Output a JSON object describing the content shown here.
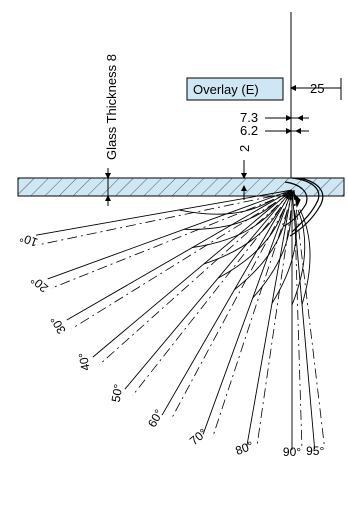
{
  "labels": {
    "glass_thickness": "Glass Thickness 8",
    "overlay": "Overlay (E)",
    "dim_25": "25",
    "dim_7_3": "7.3",
    "dim_6_2": "6.2",
    "dim_2": "2"
  },
  "angles": [
    {
      "value": 10,
      "label": "10°"
    },
    {
      "value": 20,
      "label": "20°"
    },
    {
      "value": 30,
      "label": "30°"
    },
    {
      "value": 40,
      "label": "40°"
    },
    {
      "value": 50,
      "label": "50°"
    },
    {
      "value": 60,
      "label": "60°"
    },
    {
      "value": 70,
      "label": "70°"
    },
    {
      "value": 80,
      "label": "80°"
    },
    {
      "value": 90,
      "label": "90°"
    },
    {
      "value": 95,
      "label": "95°"
    }
  ],
  "colors": {
    "glass_fill": "#cfe7f5",
    "overlay_box_fill": "#cfe7f5",
    "line": "#000000"
  }
}
